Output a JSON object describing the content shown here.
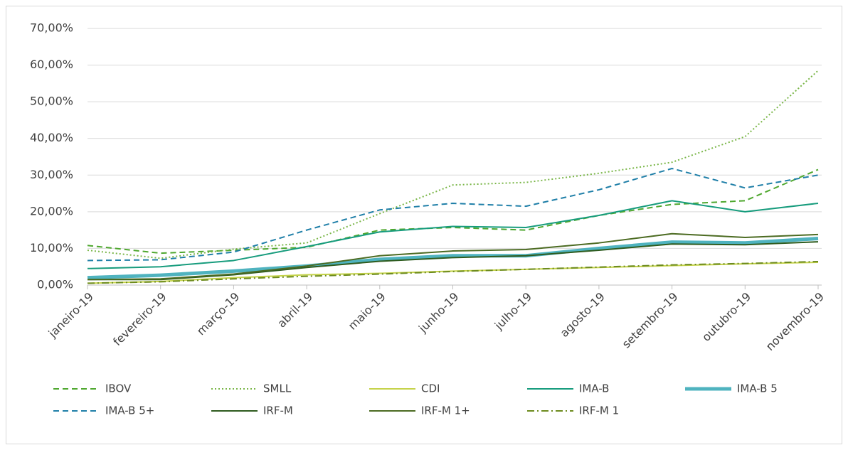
{
  "chart_data": {
    "type": "line",
    "categories": [
      "janeiro-19",
      "fevereiro-19",
      "março-19",
      "abril-19",
      "maio-19",
      "junho-19",
      "julho-19",
      "agosto-19",
      "setembro-19",
      "outubro-19",
      "novembro-19"
    ],
    "ylim": [
      0,
      70
    ],
    "yticks": [
      {
        "value": 0,
        "label": "0,00%"
      },
      {
        "value": 10,
        "label": "10,00%"
      },
      {
        "value": 20,
        "label": "20,00%"
      },
      {
        "value": 30,
        "label": "30,00%"
      },
      {
        "value": 40,
        "label": "40,00%"
      },
      {
        "value": 50,
        "label": "50,00%"
      },
      {
        "value": 60,
        "label": "60,00%"
      },
      {
        "value": 70,
        "label": "70,00%"
      }
    ],
    "grid": true,
    "legend": "bottom",
    "series": [
      {
        "name": "IBOV",
        "color": "#4ea72e",
        "style": "dashed",
        "width": 2,
        "values": [
          10.8,
          8.7,
          9.5,
          10.3,
          15,
          15.7,
          15,
          19,
          22,
          23,
          31.5
        ]
      },
      {
        "name": "SMLL",
        "color": "#7ab648",
        "style": "dotted",
        "width": 2,
        "values": [
          9.5,
          7.3,
          9.8,
          11.5,
          19.5,
          27.3,
          28,
          30.5,
          33.5,
          40.5,
          58.5
        ]
      },
      {
        "name": "CDI",
        "color": "#c5d34a",
        "style": "solid",
        "width": 2,
        "values": [
          0.5,
          1,
          2,
          2.8,
          3.2,
          3.8,
          4.3,
          4.8,
          5.3,
          5.8,
          6.2
        ]
      },
      {
        "name": "IMA-B",
        "color": "#179c7d",
        "style": "solid",
        "width": 2,
        "values": [
          4.5,
          5,
          6.7,
          10.5,
          14.5,
          16,
          15.7,
          19,
          23,
          20,
          22.3
        ]
      },
      {
        "name": "IMA-B 5",
        "color": "#4fb3bf",
        "style": "solid",
        "width": 5,
        "values": [
          2,
          2.7,
          3.8,
          5.2,
          7,
          8,
          8,
          10,
          11.7,
          11.5,
          12.7
        ]
      },
      {
        "name": "IMA-B 5+",
        "color": "#1f7fa8",
        "style": "dashed",
        "width": 2,
        "values": [
          6.7,
          6.9,
          9,
          15,
          20.5,
          22.3,
          21.5,
          26,
          31.8,
          26.5,
          30
        ]
      },
      {
        "name": "IRF-M",
        "color": "#2e5b1e",
        "style": "solid",
        "width": 2,
        "values": [
          1.5,
          1.5,
          2.8,
          4.8,
          6.5,
          7.5,
          8,
          9.5,
          11.2,
          11,
          11.8
        ]
      },
      {
        "name": "IRF-M 1+",
        "color": "#4c6b22",
        "style": "solid",
        "width": 2,
        "values": [
          1.5,
          1.7,
          3,
          5.2,
          8,
          9.3,
          9.7,
          11.5,
          14,
          13,
          13.8
        ]
      },
      {
        "name": "IRF-M 1",
        "color": "#6d8b1e",
        "style": "dashdot",
        "width": 2,
        "values": [
          0.5,
          0.9,
          1.7,
          2.4,
          3,
          3.7,
          4.3,
          4.9,
          5.5,
          5.9,
          6.4
        ]
      }
    ]
  }
}
